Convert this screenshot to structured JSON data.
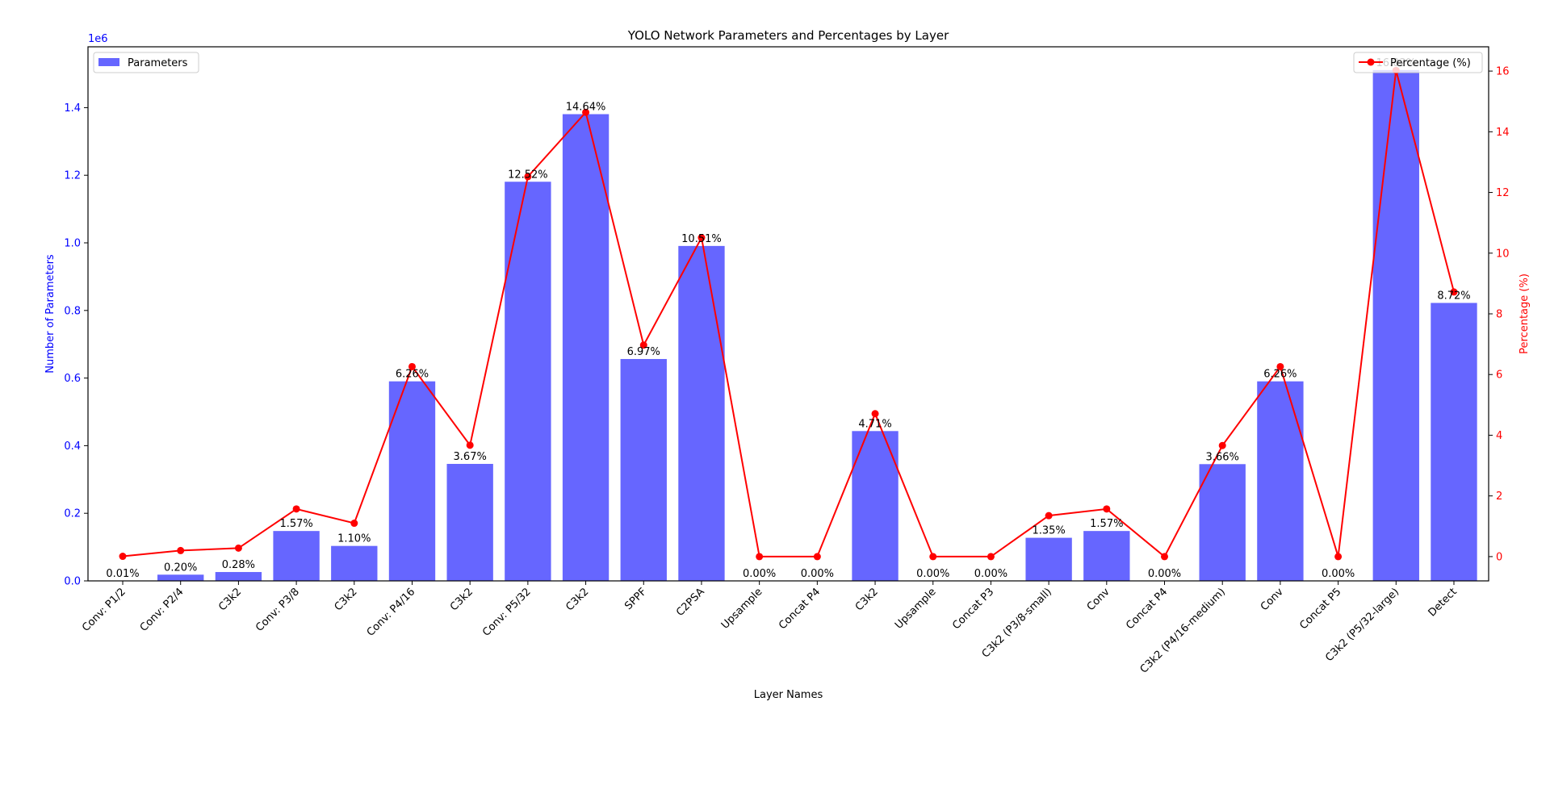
{
  "chart_data": {
    "type": "bar",
    "title": "YOLO Network Parameters and Percentages by Layer",
    "xlabel": "Layer Names",
    "ylabel_left": "Number of Parameters",
    "ylabel_right": "Percentage (%)",
    "y_left_multiplier": "1e6",
    "ylim_left": [
      0,
      1.58
    ],
    "ylim_right": [
      -0.8,
      16.8
    ],
    "y_left_ticks": [
      "0.0",
      "0.2",
      "0.4",
      "0.6",
      "0.8",
      "1.0",
      "1.2",
      "1.4"
    ],
    "y_right_ticks": [
      "0",
      "2",
      "4",
      "6",
      "8",
      "10",
      "12",
      "14",
      "16"
    ],
    "grid": false,
    "categories": [
      "Conv: P1/2",
      "Conv: P2/4",
      "C3k2",
      "Conv: P3/8",
      "C3k2",
      "Conv: P4/16",
      "C3k2",
      "Conv: P5/32",
      "C3k2",
      "SPPF",
      "C2PSA",
      "Upsample",
      "Concat P4",
      "C3k2",
      "Upsample",
      "Concat P3",
      "C3k2 (P3/8-small)",
      "Conv",
      "Concat P4",
      "C3k2 (P4/16-medium)",
      "Conv",
      "Concat P5",
      "C3k2 (P5/32-large)",
      "Detect"
    ],
    "series": [
      {
        "name": "Parameters",
        "kind": "bar",
        "color": "#6666ff",
        "values": [
          0.000464,
          0.0184,
          0.0262,
          0.1476,
          0.1034,
          0.5903,
          0.3461,
          1.1808,
          1.3807,
          0.6564,
          0.9908,
          0,
          0,
          0.4432,
          0,
          0,
          0.1275,
          0.1476,
          0,
          0.3454,
          0.5903,
          0,
          1.5112,
          0.8223
        ]
      },
      {
        "name": "Percentage (%)",
        "kind": "line",
        "color": "#ff0000",
        "values": [
          0.01,
          0.2,
          0.28,
          1.57,
          1.1,
          6.26,
          3.67,
          12.52,
          14.64,
          6.97,
          10.51,
          0.0,
          0.0,
          4.71,
          0.0,
          0.0,
          1.35,
          1.57,
          0.0,
          3.66,
          6.26,
          0.0,
          16.02,
          8.72
        ]
      }
    ],
    "data_labels": [
      "0.01%",
      "0.20%",
      "0.28%",
      "1.57%",
      "1.10%",
      "6.26%",
      "3.67%",
      "12.52%",
      "14.64%",
      "6.97%",
      "10.51%",
      "0.00%",
      "0.00%",
      "4.71%",
      "0.00%",
      "0.00%",
      "1.35%",
      "1.57%",
      "0.00%",
      "3.66%",
      "6.26%",
      "0.00%",
      "16.02%",
      "8.72%"
    ],
    "legend_left": "top-left",
    "legend_right": "top-right",
    "colors": {
      "axis_left": "#0000ff",
      "axis_right": "#ff0000"
    }
  }
}
